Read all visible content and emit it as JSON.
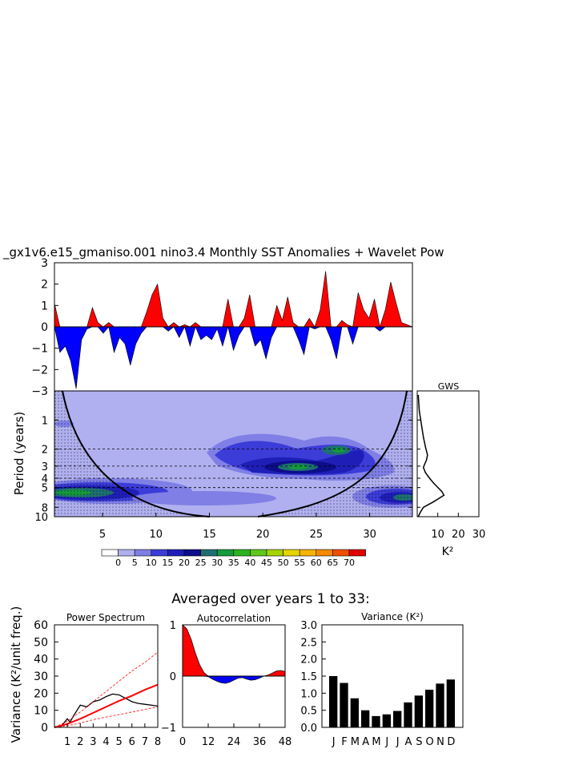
{
  "figure": {
    "title": "_gx1v6.e15_gmaniso.001 nino3.4 Monthly SST Anomalies + Wavelet Pow",
    "averaged_title": "Averaged over years 1 to 33:"
  },
  "colorbar": {
    "labels": [
      "0",
      "5",
      "10",
      "15",
      "20",
      "25",
      "30",
      "35",
      "40",
      "45",
      "50",
      "55",
      "60",
      "65",
      "70"
    ],
    "colors": [
      "#ffffff",
      "#b0b0f0",
      "#7f7fe6",
      "#3c3cd8",
      "#1f1fb8",
      "#0d0d8a",
      "#1e7070",
      "#159a3c",
      "#2ab31f",
      "#5fc81a",
      "#a5d400",
      "#e6d400",
      "#f5b400",
      "#f58a00",
      "#f05000",
      "#e00000"
    ]
  },
  "chart_data": [
    {
      "type": "area",
      "title": "",
      "xlim": [
        1,
        34
      ],
      "ylim": [
        -3,
        3
      ],
      "yticks": [
        "3",
        "2",
        "1",
        "0",
        "−1",
        "−2",
        "−3"
      ],
      "positive_color": "#ff0000",
      "negative_color": "#0000ff",
      "x": [
        1,
        1.5,
        2,
        2.5,
        3,
        3.5,
        4,
        4.5,
        5,
        5.5,
        6,
        6.5,
        7,
        7.5,
        8,
        8.5,
        9,
        9.5,
        10,
        10.5,
        11,
        11.5,
        12,
        12.5,
        13,
        13.5,
        14,
        14.5,
        15,
        15.5,
        16,
        16.5,
        17,
        17.5,
        18,
        18.5,
        19,
        19.5,
        20,
        20.5,
        21,
        21.5,
        22,
        22.5,
        23,
        23.5,
        24,
        24.5,
        25,
        25.5,
        26,
        26.5,
        27,
        27.5,
        28,
        28.5,
        29,
        29.5,
        30,
        30.5,
        31,
        31.5,
        32,
        32.5,
        33,
        33.5,
        34
      ],
      "values": [
        1.1,
        -1.2,
        -0.9,
        -1.6,
        -2.9,
        -0.6,
        -0.1,
        0.9,
        0.2,
        -0.3,
        0.2,
        -1.2,
        -0.5,
        -0.8,
        -1.8,
        -0.8,
        -0.3,
        0.7,
        1.5,
        2.0,
        0.4,
        -0.2,
        0.2,
        -0.5,
        0.1,
        -0.9,
        0.2,
        -0.6,
        -0.4,
        -0.6,
        -0.1,
        -0.9,
        1.3,
        -1.1,
        -0.4,
        0.4,
        1.5,
        -0.9,
        -0.6,
        -1.5,
        -0.5,
        1.0,
        0.3,
        1.4,
        0.2,
        -0.6,
        -1.3,
        0.4,
        -0.1,
        0.8,
        2.6,
        -0.6,
        -1.5,
        0.3,
        0.1,
        -0.8,
        1.6,
        0.8,
        0.4,
        1.3,
        -0.2,
        0.8,
        2.1,
        1.1,
        0.2,
        0.1,
        0
      ]
    },
    {
      "type": "heatmap",
      "title": "",
      "xlabel": "",
      "ylabel": "Period (years)",
      "xlim": [
        0.5,
        34
      ],
      "ylim": [
        0.5,
        10
      ],
      "xticks": [
        5,
        10,
        15,
        20,
        25,
        30
      ],
      "yticks": [
        1,
        2,
        3,
        4,
        5,
        8,
        10
      ],
      "levels": [
        0,
        5,
        10,
        15,
        20,
        25,
        30,
        35,
        40,
        45,
        50,
        55,
        60,
        65,
        70
      ],
      "features": [
        {
          "center_year": 6.5,
          "period": 6.5,
          "peak_level": 30
        },
        {
          "center_year": 23.5,
          "period": 3.2,
          "peak_level": 30
        },
        {
          "center_year": 27.0,
          "period": 2.1,
          "peak_level": 30
        },
        {
          "center_year": 32.0,
          "period": 6.5,
          "peak_level": 25
        }
      ],
      "significance_periods": [
        2,
        3,
        4,
        5
      ]
    },
    {
      "type": "line",
      "title": "GWS",
      "xlabel": "K²",
      "xlim": [
        0,
        30
      ],
      "xticks": [
        10,
        20,
        30
      ],
      "x": [
        0.5,
        1,
        2,
        3,
        4,
        5,
        4.5,
        3.5,
        3,
        4,
        6,
        8,
        12,
        13,
        8,
        3,
        1.5,
        0.5
      ],
      "y": [
        0.55,
        0.8,
        1.1,
        1.5,
        1.9,
        2.3,
        2.6,
        2.9,
        3.1,
        3.5,
        4.0,
        4.5,
        5.5,
        6.0,
        7.0,
        8.0,
        9.0,
        10.0
      ]
    },
    {
      "type": "line",
      "title": "Power Spectrum",
      "xlabel": "",
      "ylabel": "Variance (K²/unit freq.)",
      "xlim": [
        0,
        8
      ],
      "ylim": [
        0,
        60
      ],
      "xticks": [
        1,
        2,
        3,
        4,
        5,
        6,
        7,
        8
      ],
      "yticks": [
        0,
        10,
        20,
        30,
        40,
        50,
        60
      ],
      "series": [
        {
          "name": "",
          "color": "#000000",
          "x": [
            0,
            0.5,
            1,
            1.2,
            1.5,
            2,
            2.5,
            3,
            3.5,
            4,
            4.5,
            5,
            5.5,
            6,
            6.5,
            7,
            7.5,
            8
          ],
          "y": [
            0,
            0.5,
            5,
            3,
            7,
            13,
            12,
            15,
            16,
            18,
            19.5,
            19,
            17,
            15,
            14,
            13.5,
            13,
            12.5
          ]
        },
        {
          "name": "",
          "color": "#ff0000",
          "x": [
            0,
            1,
            2,
            3,
            4,
            5,
            6,
            7,
            8
          ],
          "y": [
            0,
            2,
            5,
            8.5,
            12,
            15.5,
            18.5,
            22,
            25
          ]
        },
        {
          "name": "",
          "color": "#ff0000",
          "dashed": true,
          "x": [
            0,
            1,
            2,
            3,
            4,
            5,
            6,
            7,
            8
          ],
          "y": [
            0,
            3.5,
            9,
            15,
            21,
            27,
            33,
            38,
            44
          ]
        },
        {
          "name": "",
          "color": "#ff0000",
          "dashed": true,
          "x": [
            0,
            1,
            2,
            3,
            4,
            5,
            6,
            7,
            8
          ],
          "y": [
            0,
            1,
            2.5,
            4.5,
            6,
            7.5,
            9,
            10.5,
            12
          ]
        }
      ]
    },
    {
      "type": "area",
      "title": "Autocorrelation",
      "xlabel": "",
      "xlim": [
        0,
        48
      ],
      "ylim": [
        -1,
        1
      ],
      "xticks": [
        0,
        12,
        24,
        36,
        48
      ],
      "yticks": [
        -1,
        0,
        1
      ],
      "x": [
        0,
        2,
        4,
        6,
        8,
        10,
        12,
        14,
        16,
        18,
        20,
        22,
        24,
        26,
        28,
        30,
        32,
        34,
        36,
        38,
        40,
        42,
        44,
        46,
        48
      ],
      "values": [
        1.0,
        0.92,
        0.72,
        0.45,
        0.22,
        0.07,
        -0.01,
        -0.06,
        -0.1,
        -0.13,
        -0.14,
        -0.12,
        -0.08,
        -0.04,
        -0.03,
        -0.06,
        -0.08,
        -0.07,
        -0.04,
        0.0,
        0.02,
        0.06,
        0.1,
        0.11,
        0.09
      ]
    },
    {
      "type": "bar",
      "title": "Variance (K²)",
      "categories": [
        "J",
        "F",
        "M",
        "A",
        "M",
        "J",
        "J",
        "A",
        "S",
        "O",
        "N",
        "D"
      ],
      "values": [
        1.5,
        1.3,
        0.85,
        0.5,
        0.33,
        0.38,
        0.48,
        0.73,
        0.93,
        1.1,
        1.28,
        1.4
      ],
      "ylim": [
        0,
        3.0
      ],
      "yticks": [
        "0.0",
        "0.5",
        "1.0",
        "1.5",
        "2.0",
        "2.5",
        "3.0"
      ],
      "color": "#000000"
    }
  ]
}
